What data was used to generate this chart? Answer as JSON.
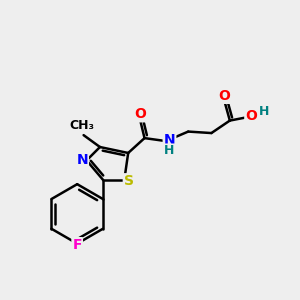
{
  "background_color": "#eeeeee",
  "bond_color": "#000000",
  "bond_width": 1.8,
  "atom_colors": {
    "O": "#ff0000",
    "N": "#0000ff",
    "S": "#bbbb00",
    "F": "#ff00cc",
    "H": "#008080",
    "C": "#000000"
  },
  "font_size": 10,
  "fig_width": 3.0,
  "fig_height": 3.0,
  "dpi": 100,
  "xlim": [
    0,
    10
  ],
  "ylim": [
    0,
    10
  ]
}
